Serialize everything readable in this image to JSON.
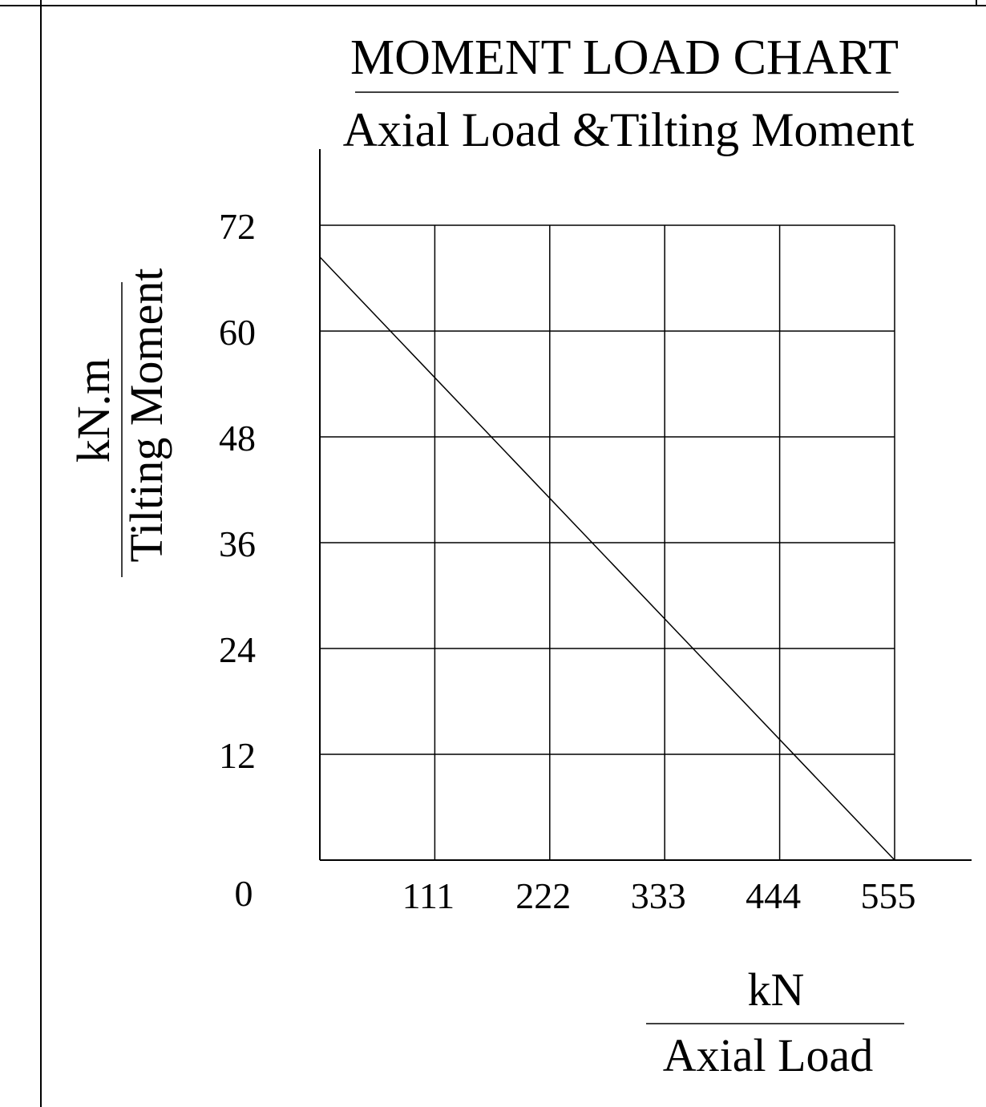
{
  "chart_data": {
    "type": "line",
    "title": "MOMENT LOAD CHART",
    "subtitle": "Axial Load &Tilting Moment",
    "xlabel": {
      "unit": "kN",
      "name": "Axial Load"
    },
    "ylabel": {
      "unit": "kN.m",
      "name": "Tilting Moment"
    },
    "x_origin_label": "0",
    "x_ticks": [
      111,
      222,
      333,
      444,
      555
    ],
    "y_ticks": [
      12,
      24,
      36,
      48,
      60,
      72
    ],
    "xlim": [
      0,
      555
    ],
    "ylim": [
      0,
      72
    ],
    "grid": true,
    "series": [
      {
        "x": [
          0,
          555
        ],
        "y": [
          68.4,
          0
        ]
      }
    ]
  }
}
